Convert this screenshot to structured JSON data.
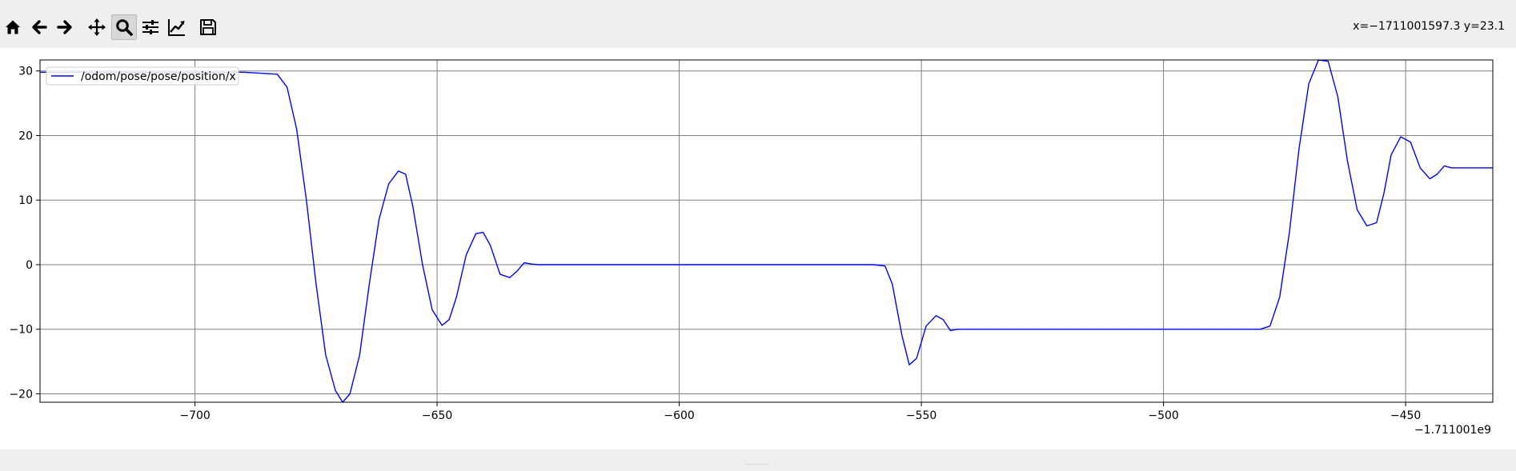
{
  "toolbar": {
    "buttons": [
      {
        "name": "home-button",
        "icon": "home-icon",
        "tooltip": "Reset original view"
      },
      {
        "name": "back-button",
        "icon": "arrow-left-icon",
        "tooltip": "Back"
      },
      {
        "name": "forward-button",
        "icon": "arrow-right-icon",
        "tooltip": "Forward"
      },
      {
        "name": "pan-button",
        "icon": "move-icon",
        "tooltip": "Pan"
      },
      {
        "name": "zoom-button",
        "icon": "magnifier-icon",
        "tooltip": "Zoom",
        "active": true
      },
      {
        "name": "configure-subplots-button",
        "icon": "sliders-icon",
        "tooltip": "Configure subplots"
      },
      {
        "name": "edit-axis-button",
        "icon": "line-chart-icon",
        "tooltip": "Edit axis"
      },
      {
        "name": "save-button",
        "icon": "floppy-disk-icon",
        "tooltip": "Save"
      }
    ],
    "coordinates": "x=−1711001597.3 y=23.1"
  },
  "colors": {
    "background": "#efefef",
    "plot_background": "#ffffff",
    "line": "#0000ff",
    "grid": "#808080"
  },
  "chart_data": {
    "type": "line",
    "title": "",
    "xlabel": "",
    "ylabel": "",
    "x_offset_label": "−1.711001e9",
    "xlim": [
      -732,
      -432
    ],
    "ylim": [
      -21.3,
      31.7
    ],
    "x_ticks": [
      -700,
      -650,
      -600,
      -550,
      -500,
      -450
    ],
    "x_tick_labels": [
      "−700",
      "−650",
      "−600",
      "−550",
      "−500",
      "−450"
    ],
    "y_ticks": [
      -20,
      -10,
      0,
      10,
      20,
      30
    ],
    "y_tick_labels": [
      "−20",
      "−10",
      "0",
      "10",
      "20",
      "30"
    ],
    "grid": true,
    "legend_position": "top-left",
    "series": [
      {
        "name": "/odom/pose/pose/position/x",
        "color": "#0000ff",
        "x": [
          -732,
          -690,
          -683,
          -681,
          -679,
          -677,
          -675,
          -673,
          -671,
          -669.5,
          -668,
          -666,
          -664,
          -662,
          -660,
          -658,
          -656.5,
          -655,
          -653,
          -651,
          -649,
          -647.5,
          -646,
          -644,
          -642,
          -640.5,
          -639,
          -637,
          -635,
          -633.5,
          -632,
          -630.5,
          -629,
          -620,
          -600,
          -580,
          -560,
          -557.5,
          -556,
          -554,
          -552.5,
          -551,
          -549,
          -547,
          -545.5,
          -544,
          -542.5,
          -541,
          -530,
          -510,
          -490,
          -480,
          -478,
          -476,
          -474,
          -472,
          -470,
          -468,
          -466,
          -464,
          -462,
          -460,
          -458,
          -456,
          -454.5,
          -453,
          -451,
          -449,
          -447,
          -445,
          -443.5,
          -442,
          -440.5,
          -439,
          -436,
          -432
        ],
        "y": [
          29.8,
          29.8,
          29.5,
          27.5,
          21,
          10,
          -3,
          -14,
          -19.5,
          -21.3,
          -20,
          -14,
          -3,
          7,
          12.5,
          14.5,
          14,
          9,
          0,
          -7,
          -9.4,
          -8.5,
          -5,
          1.5,
          4.8,
          5,
          3,
          -1.5,
          -2,
          -1,
          0.3,
          0.1,
          0,
          0,
          0,
          0,
          0,
          -0.2,
          -3,
          -11,
          -15.5,
          -14.5,
          -9.5,
          -7.9,
          -8.5,
          -10.2,
          -10,
          -10,
          -10,
          -10,
          -10,
          -10,
          -9.5,
          -5,
          5,
          18,
          28,
          31.7,
          31.5,
          26,
          16,
          8.5,
          6,
          6.5,
          11,
          17,
          19.8,
          19,
          15,
          13.3,
          14,
          15.3,
          15,
          15,
          15,
          15
        ]
      }
    ]
  }
}
